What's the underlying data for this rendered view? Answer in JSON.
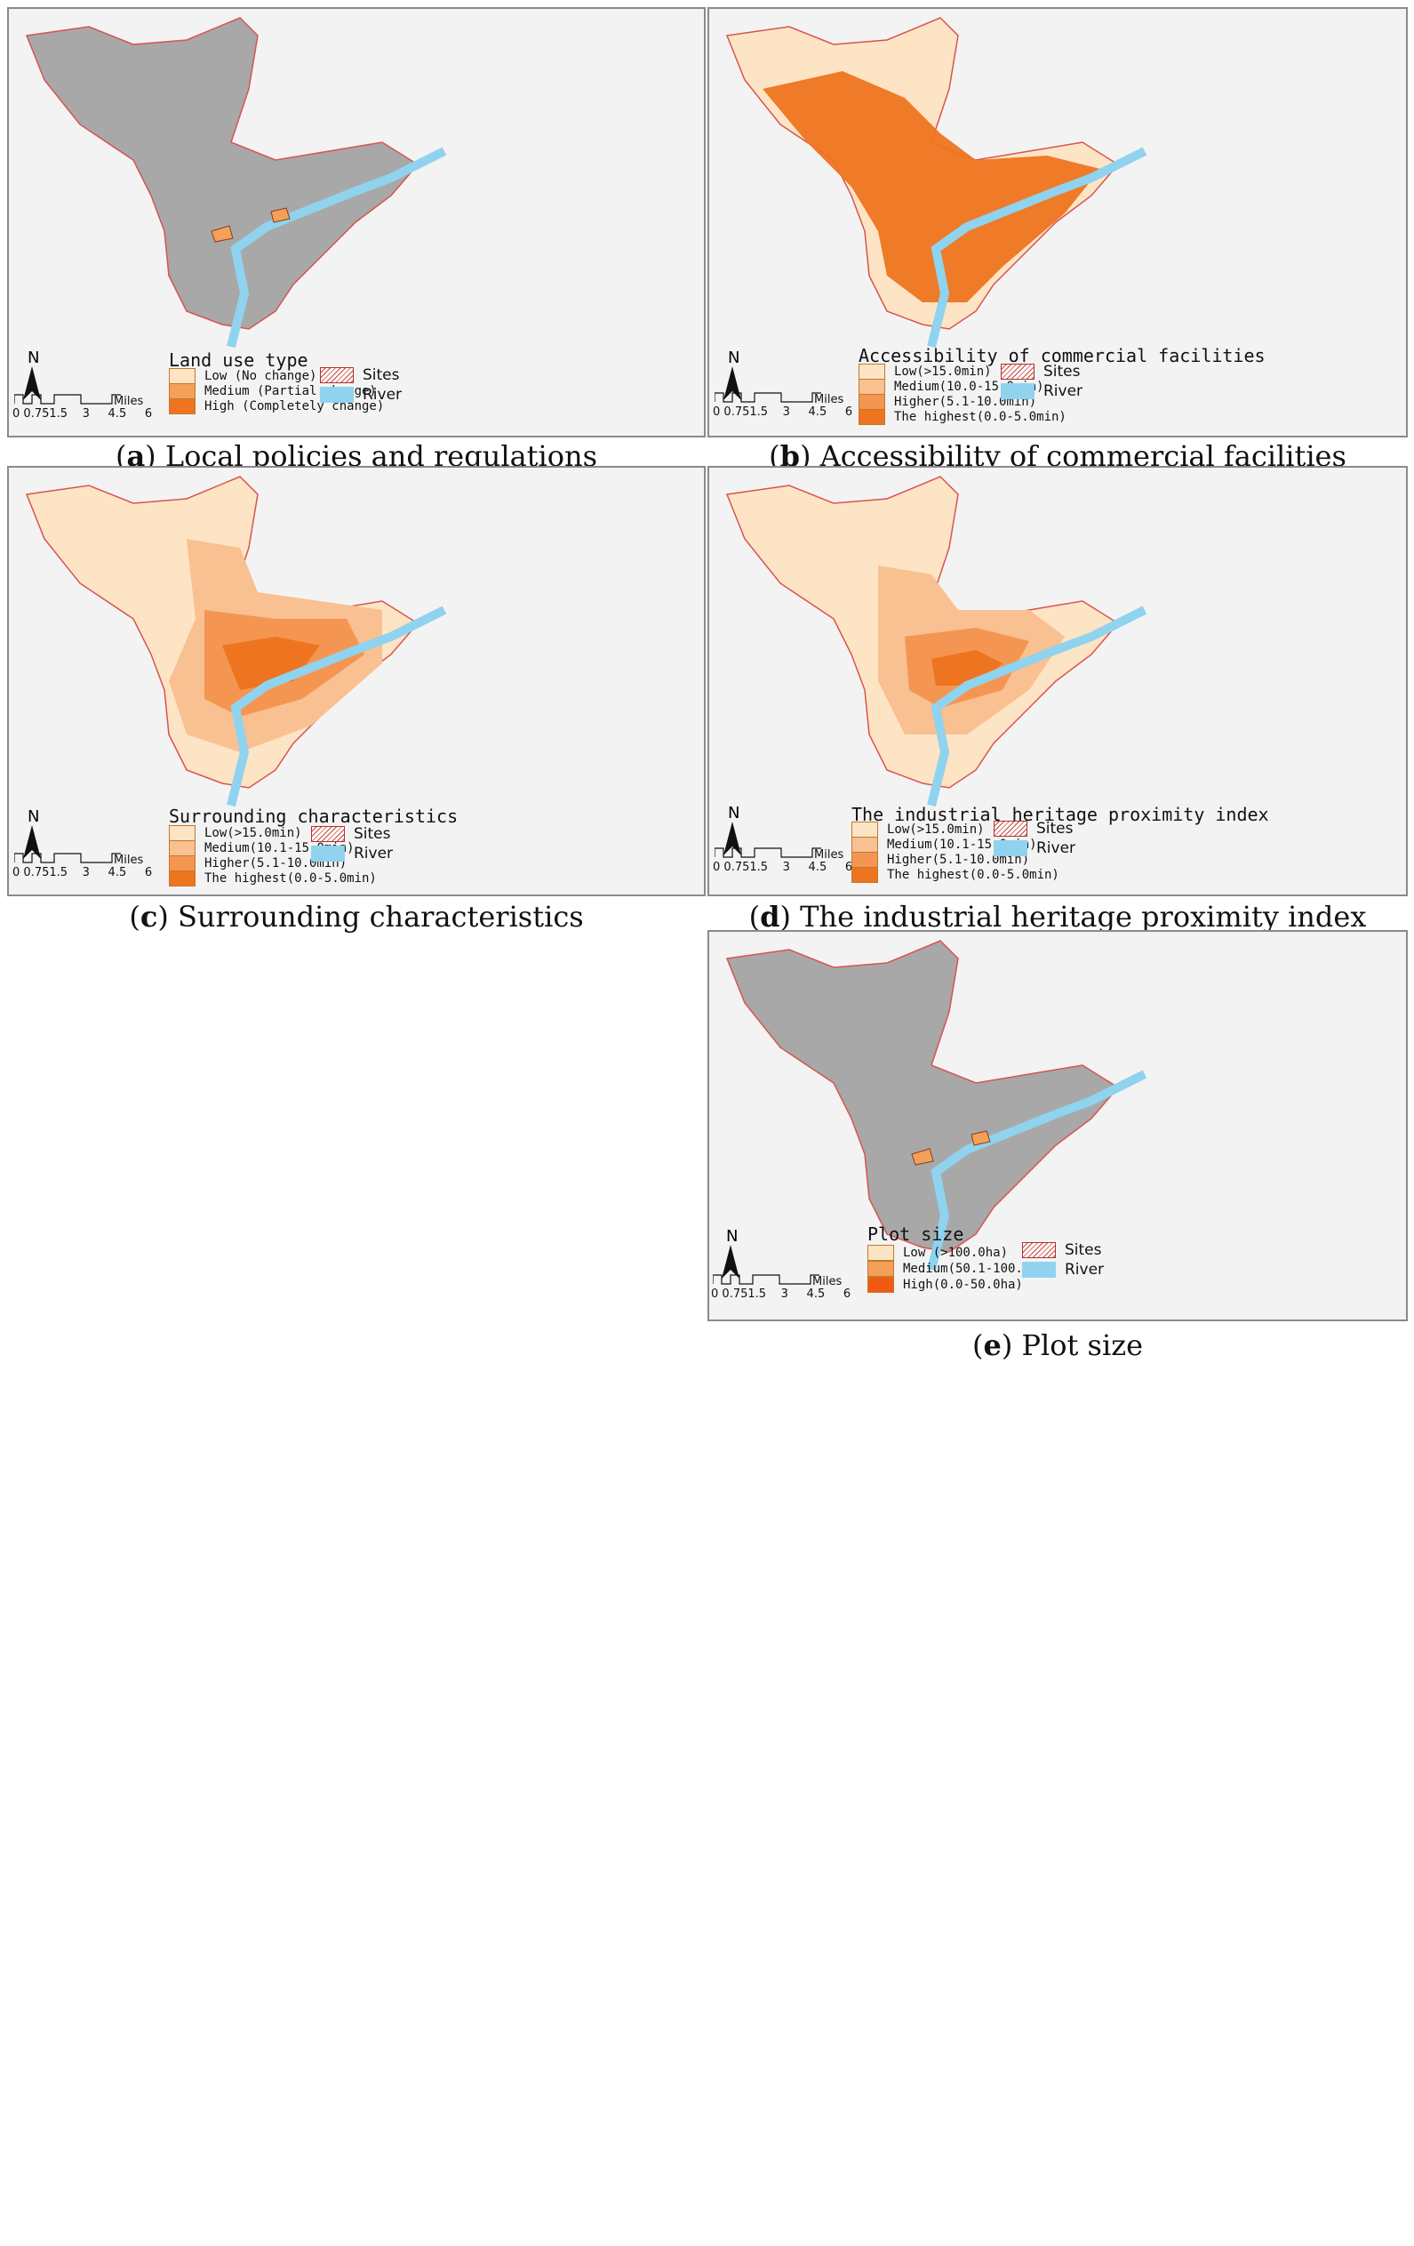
{
  "panels": {
    "a": {
      "legend_title": "Land use type",
      "classes": [
        "Low (No change)",
        "Medium (Partial change)",
        "High (Completely change)"
      ],
      "colors": [
        "#fde4c4",
        "#f5a05a",
        "#ee7420"
      ],
      "sites_label": "Sites",
      "river_label": "River",
      "caption_letter": "a",
      "caption_text": "Local policies and regulations"
    },
    "b": {
      "legend_title": "Accessibility of commercial facilities",
      "classes": [
        "Low(>15.0min)",
        "Medium(10.0-15.0min)",
        "Higher(5.1-10.0min)",
        "The highest(0.0-5.0min)"
      ],
      "colors": [
        "#fde4c4",
        "#f9c092",
        "#f49552",
        "#ee7420"
      ],
      "sites_label": "Sites",
      "river_label": "River",
      "caption_letter": "b",
      "caption_text": "Accessibility of commercial facilities"
    },
    "c": {
      "legend_title": "Surrounding characteristics",
      "classes": [
        "Low(>15.0min)",
        "Medium(10.1-15.0min)",
        "Higher(5.1-10.0min)",
        "The highest(0.0-5.0min)"
      ],
      "colors": [
        "#fde4c4",
        "#f9c092",
        "#f49552",
        "#ee7420"
      ],
      "sites_label": "Sites",
      "river_label": "River",
      "caption_letter": "c",
      "caption_text": "Surrounding characteristics"
    },
    "d": {
      "legend_title": "The industrial heritage proximity index",
      "classes": [
        "Low(>15.0min)",
        "Medium(10.1-15.0min)",
        "Higher(5.1-10.0min)",
        "The highest(0.0-5.0min)"
      ],
      "colors": [
        "#fde4c4",
        "#f9c092",
        "#f49552",
        "#ee7420"
      ],
      "sites_label": "Sites",
      "river_label": "River",
      "caption_letter": "d",
      "caption_text": "The industrial heritage proximity index"
    },
    "e": {
      "legend_title": "Plot size",
      "classes": [
        "Low (>100.0ha)",
        "Medium(50.1-100.0ha)",
        "High(0.0-50.0ha)"
      ],
      "colors": [
        "#fde4c4",
        "#f5a05a",
        "#f05a14"
      ],
      "sites_label": "Sites",
      "river_label": "River",
      "caption_letter": "e",
      "caption_text": "Plot size"
    }
  },
  "north_label": "N",
  "scale_ticks": [
    "0",
    "0.75",
    "1.5",
    "3",
    "4.5",
    "6"
  ],
  "scale_unit": "Miles",
  "colors": {
    "river": "#8fd3ef",
    "boundary": "#d9534f",
    "grey_base": "#9a9a9a"
  }
}
